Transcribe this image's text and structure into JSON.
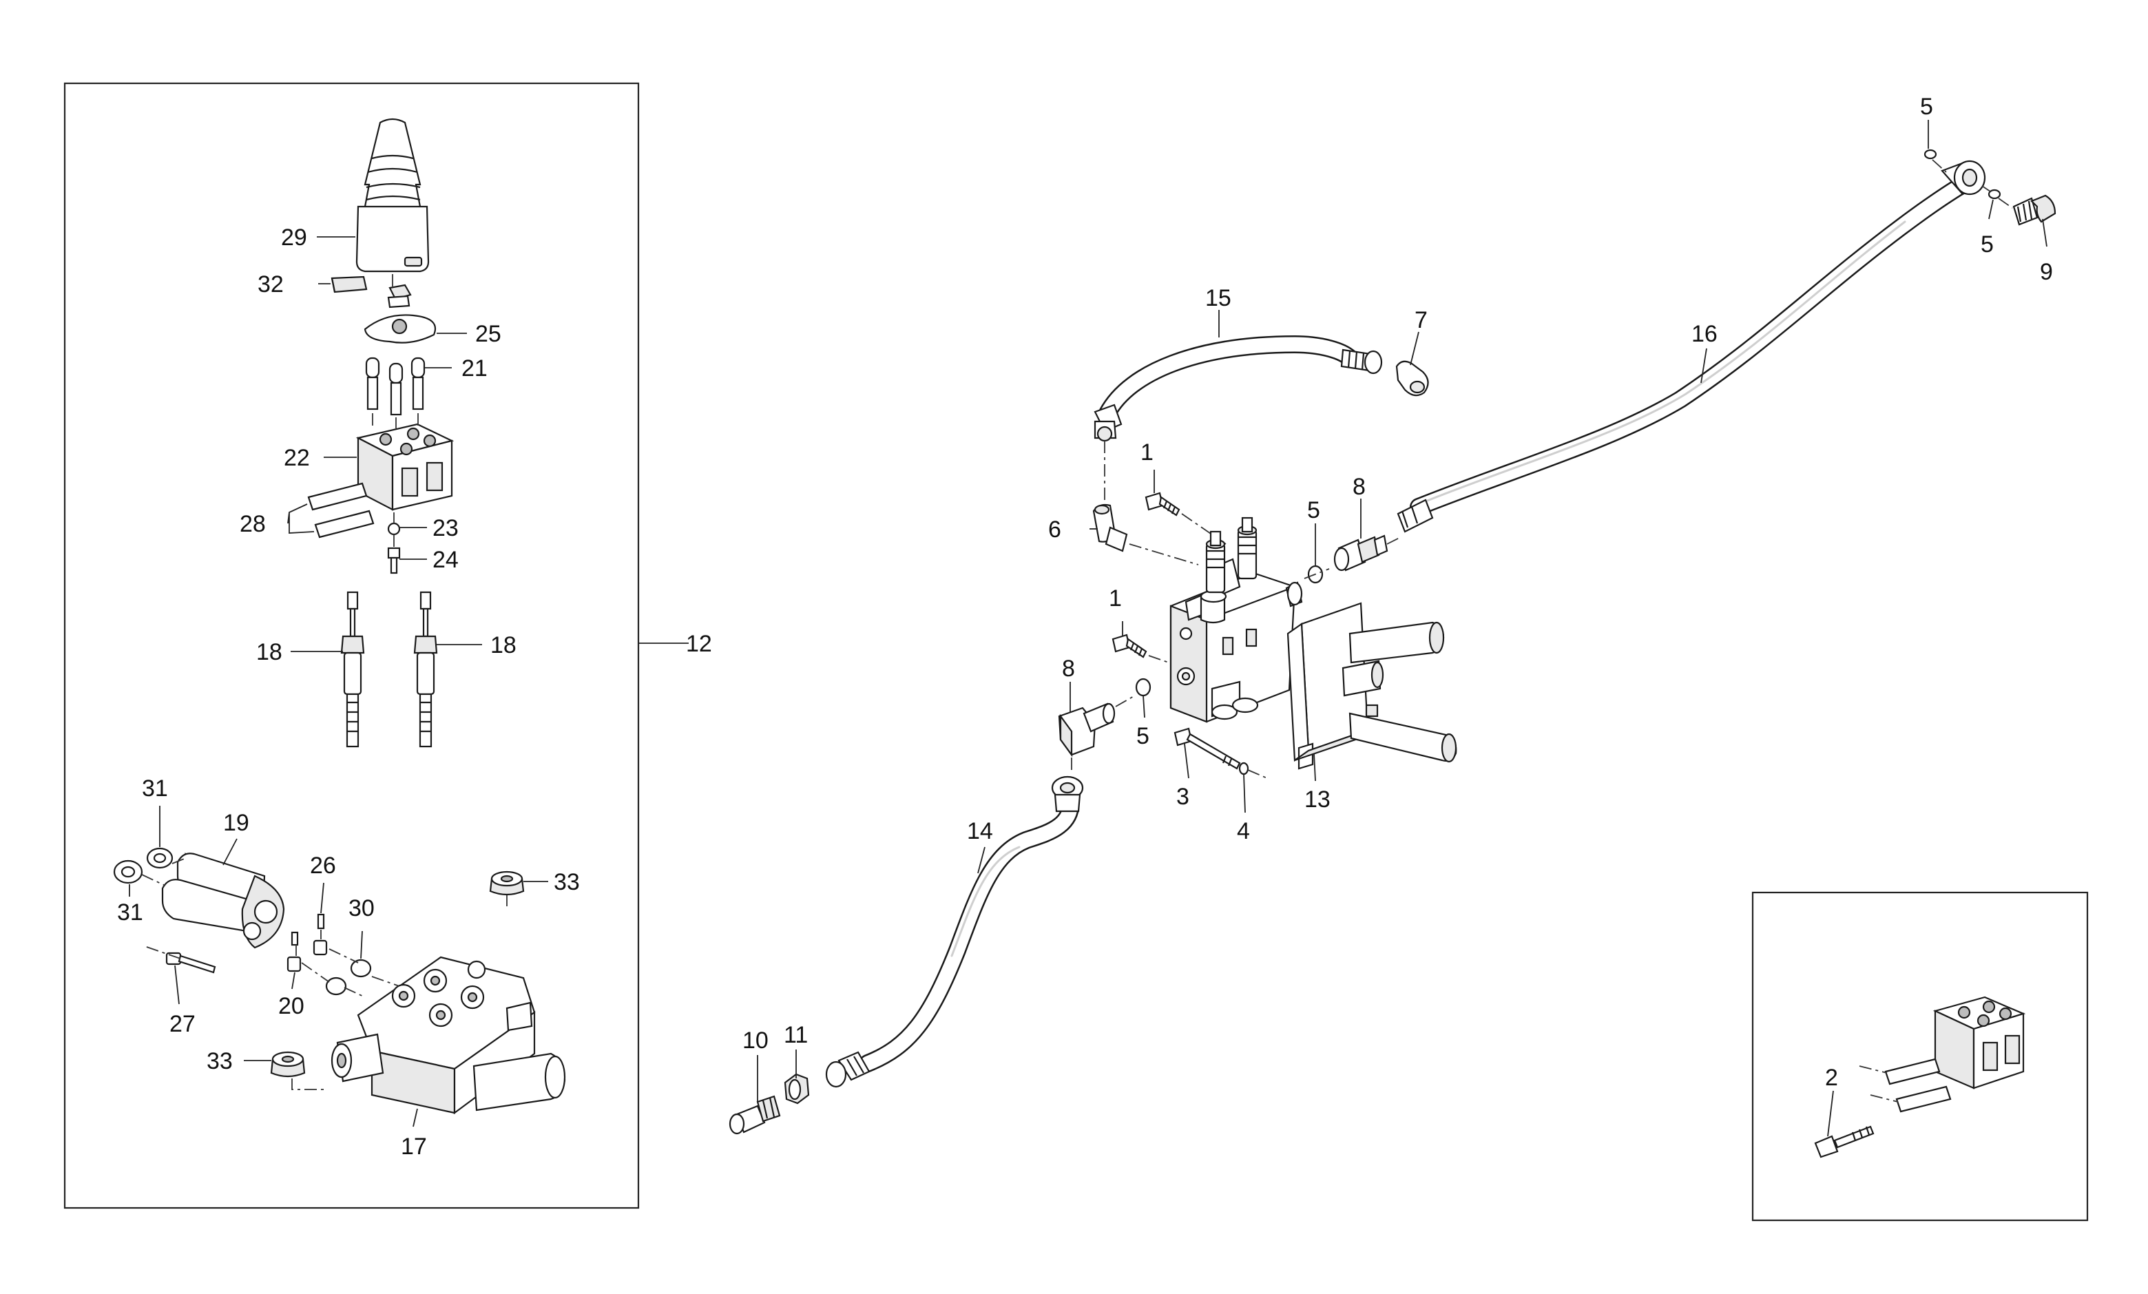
{
  "labels": {
    "l1a": "1",
    "l1b": "1",
    "l2": "2",
    "l3": "3",
    "l4": "4",
    "l5a": "5",
    "l5b": "5",
    "l5c": "5",
    "l5d": "5",
    "l6": "6",
    "l7": "7",
    "l8a": "8",
    "l8b": "8",
    "l9": "9",
    "l10": "10",
    "l11": "11",
    "l12": "12",
    "l13": "13",
    "l14": "14",
    "l15": "15",
    "l16": "16",
    "l17": "17",
    "l18a": "18",
    "l18b": "18",
    "l19": "19",
    "l20": "20",
    "l21": "21",
    "l22": "22",
    "l23": "23",
    "l24": "24",
    "l25": "25",
    "l26": "26",
    "l27": "27",
    "l28": "28",
    "l29": "29",
    "l30": "30",
    "l31a": "31",
    "l31b": "31",
    "l32": "32",
    "l33a": "33",
    "l33b": "33"
  },
  "icons": {
    "main_valve": "control-valve-icon",
    "joystick": "joystick-icon",
    "hose": "hydraulic-hose-icon",
    "bracket": "mounting-bracket-icon"
  }
}
